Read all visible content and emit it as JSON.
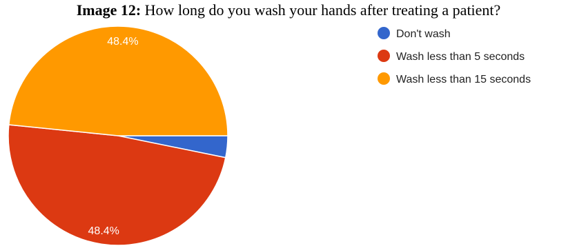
{
  "caption": {
    "label": "Image 12:",
    "text": "How long do you wash your hands after treating a patient?"
  },
  "chart_data": {
    "type": "pie",
    "title": "",
    "legend_position": "right",
    "series": [
      {
        "name": "Don't wash",
        "value": 3.2,
        "color": "#3366cc",
        "label": ""
      },
      {
        "name": "Wash less than 5 seconds",
        "value": 48.4,
        "color": "#dc3912",
        "label": "48.4%"
      },
      {
        "name": "Wash less than 15 seconds",
        "value": 48.4,
        "color": "#ff9900",
        "label": "48.4%"
      }
    ]
  }
}
